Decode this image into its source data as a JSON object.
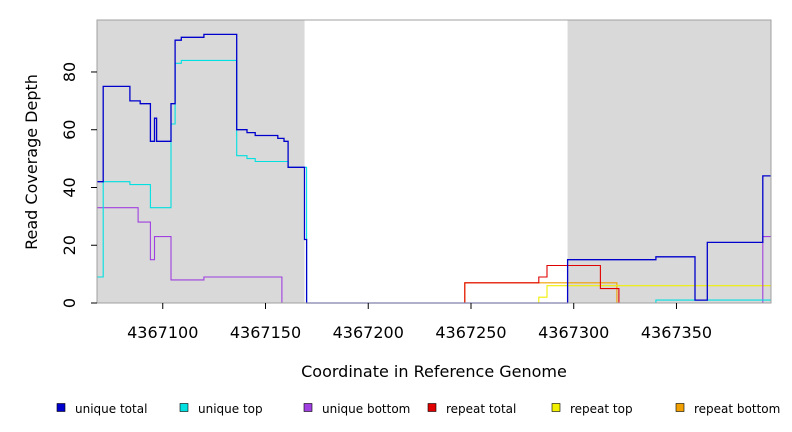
{
  "chart_data": {
    "type": "line",
    "xlabel": "Coordinate in Reference Genome",
    "ylabel": "Read Coverage Depth",
    "xlim": [
      4367068,
      4367396
    ],
    "ylim": [
      0,
      98
    ],
    "x_ticks": [
      4367100,
      4367150,
      4367200,
      4367250,
      4367300,
      4367350
    ],
    "x_tick_labels": [
      "4367100",
      "4367150",
      "4367200",
      "4367250",
      "4367300",
      "4367350"
    ],
    "y_ticks": [
      0,
      20,
      40,
      60,
      80
    ],
    "y_tick_labels": [
      "0",
      "20",
      "40",
      "60",
      "80"
    ],
    "grid": false,
    "shaded_regions": [
      {
        "x": [
          4367068,
          4367169
        ],
        "color": "#d9d9d9"
      },
      {
        "x": [
          4367297,
          4367396
        ],
        "color": "#d9d9d9"
      }
    ],
    "legend_position": "bottom",
    "series": [
      {
        "name": "unique total",
        "color": "#0000cd",
        "x": [
          4367068,
          4367071,
          4367071,
          4367084,
          4367084,
          4367089,
          4367089,
          4367094,
          4367094,
          4367096,
          4367096,
          4367097,
          4367097,
          4367104,
          4367104,
          4367106,
          4367106,
          4367109,
          4367109,
          4367120,
          4367120,
          4367136,
          4367136,
          4367141,
          4367141,
          4367145,
          4367145,
          4367156,
          4367156,
          4367159,
          4367159,
          4367161,
          4367161,
          4367169,
          4367169,
          4367170,
          4367170,
          4367297,
          4367297,
          4367340,
          4367340,
          4367359,
          4367359,
          4367365,
          4367365,
          4367392,
          4367392,
          4367396
        ],
        "y": [
          42,
          42,
          75,
          75,
          70,
          70,
          69,
          69,
          56,
          56,
          64,
          64,
          56,
          56,
          69,
          69,
          91,
          91,
          92,
          92,
          93,
          93,
          60,
          60,
          59,
          59,
          58,
          58,
          57,
          57,
          56,
          56,
          47,
          47,
          22,
          22,
          0,
          0,
          15,
          15,
          16,
          16,
          1,
          1,
          21,
          21,
          44,
          44
        ]
      },
      {
        "name": "unique top",
        "color": "#00e0e0",
        "x": [
          4367068,
          4367071,
          4367071,
          4367084,
          4367084,
          4367094,
          4367094,
          4367098,
          4367098,
          4367104,
          4367104,
          4367106,
          4367106,
          4367109,
          4367109,
          4367136,
          4367136,
          4367141,
          4367141,
          4367145,
          4367145,
          4367161,
          4367161,
          4367170,
          4367170,
          4367340,
          4367340,
          4367396
        ],
        "y": [
          9,
          9,
          42,
          42,
          41,
          41,
          33,
          33,
          33,
          33,
          62,
          62,
          83,
          83,
          84,
          84,
          51,
          51,
          50,
          50,
          49,
          49,
          47,
          47,
          0,
          0,
          1,
          1
        ]
      },
      {
        "name": "unique bottom",
        "color": "#a040e0",
        "x": [
          4367068,
          4367088,
          4367088,
          4367094,
          4367094,
          4367096,
          4367096,
          4367104,
          4367104,
          4367120,
          4367120,
          4367158,
          4367158,
          4367392,
          4367392,
          4367396
        ],
        "y": [
          33,
          33,
          28,
          28,
          15,
          15,
          23,
          23,
          8,
          8,
          9,
          9,
          0,
          0,
          23,
          23
        ]
      },
      {
        "name": "repeat total",
        "color": "#e00000",
        "x": [
          4367068,
          4367247,
          4367247,
          4367283,
          4367283,
          4367287,
          4367287,
          4367313,
          4367313,
          4367322,
          4367322,
          4367396
        ],
        "y": [
          0,
          0,
          7,
          7,
          9,
          9,
          13,
          13,
          5,
          5,
          0,
          0
        ]
      },
      {
        "name": "repeat top",
        "color": "#f0f000",
        "x": [
          4367068,
          4367283,
          4367283,
          4367287,
          4367287,
          4367396
        ],
        "y": [
          0,
          0,
          2,
          2,
          6,
          6
        ]
      },
      {
        "name": "repeat bottom",
        "color": "#f0a000",
        "x": [
          4367068,
          4367247,
          4367247,
          4367321,
          4367321,
          4367396
        ],
        "y": [
          0,
          0,
          7,
          7,
          0,
          0
        ]
      }
    ]
  }
}
